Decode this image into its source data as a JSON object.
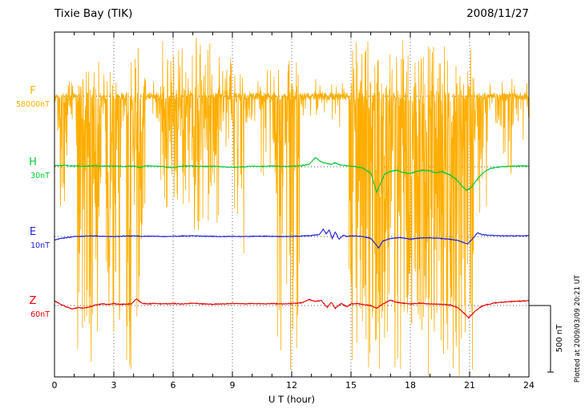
{
  "chart_data": {
    "type": "line",
    "title": "Tixie Bay (TIK)",
    "date": "2008/11/27",
    "xlabel": "U T (hour)",
    "xlim": [
      0,
      24
    ],
    "xticks": [
      0,
      3,
      6,
      9,
      12,
      15,
      18,
      21,
      24
    ],
    "x_minor_tick_hours": 1,
    "grid": "dotted vertical lines every 3 hours; dotted horizontal baseline for each component",
    "scale_bar": {
      "label": "500 nT",
      "nT": 500
    },
    "footer_note": "Plotted at 2009/03/09 20:21 UT",
    "series": [
      {
        "name": "F",
        "baseline_label": "58000nT",
        "baseline_nT": 58000,
        "color": "#FFAE00",
        "style": "noisy",
        "noise_segments": [
          [
            0.0,
            0.15,
            60,
            120,
            0.3
          ],
          [
            0.15,
            0.7,
            150,
            1100,
            0.55
          ],
          [
            0.7,
            1.1,
            120,
            300,
            0.35
          ],
          [
            1.1,
            2.3,
            360,
            2050,
            0.8
          ],
          [
            2.3,
            2.6,
            200,
            800,
            0.5
          ],
          [
            2.6,
            3.3,
            380,
            2100,
            0.8
          ],
          [
            3.3,
            3.6,
            200,
            700,
            0.45
          ],
          [
            3.6,
            4.6,
            420,
            2100,
            0.85
          ],
          [
            4.6,
            5.3,
            140,
            260,
            0.35
          ],
          [
            5.3,
            6.6,
            460,
            850,
            0.8
          ],
          [
            6.6,
            8.3,
            440,
            1050,
            0.8
          ],
          [
            8.3,
            9.0,
            300,
            420,
            0.55
          ],
          [
            9.0,
            9.6,
            260,
            1250,
            0.6
          ],
          [
            9.6,
            10.4,
            120,
            220,
            0.3
          ],
          [
            10.4,
            11.2,
            260,
            700,
            0.55
          ],
          [
            11.2,
            12.4,
            400,
            2050,
            0.75
          ],
          [
            12.4,
            12.9,
            100,
            180,
            0.2
          ],
          [
            12.9,
            13.4,
            200,
            500,
            0.3
          ],
          [
            13.4,
            14.9,
            120,
            300,
            0.12
          ],
          [
            14.9,
            16.2,
            430,
            2100,
            0.85
          ],
          [
            16.2,
            17.4,
            450,
            2150,
            0.92
          ],
          [
            17.4,
            19.2,
            460,
            2150,
            0.93
          ],
          [
            19.2,
            21.3,
            450,
            2150,
            0.9
          ],
          [
            21.3,
            21.9,
            200,
            900,
            0.5
          ],
          [
            21.9,
            22.6,
            120,
            260,
            0.3
          ],
          [
            22.6,
            23.3,
            180,
            620,
            0.45
          ],
          [
            23.3,
            24.0,
            100,
            420,
            0.25
          ]
        ]
      },
      {
        "name": "H",
        "baseline_label": "30nT",
        "baseline_nT": 30,
        "color": "#00C832",
        "noise_nT": 3,
        "points": [
          [
            0,
            8
          ],
          [
            0.5,
            10
          ],
          [
            1,
            6
          ],
          [
            1.5,
            4
          ],
          [
            2,
            8
          ],
          [
            2.5,
            4
          ],
          [
            3,
            6
          ],
          [
            3.5,
            2
          ],
          [
            4,
            6
          ],
          [
            4.3,
            -6
          ],
          [
            4.6,
            8
          ],
          [
            5,
            4
          ],
          [
            5.5,
            2
          ],
          [
            6,
            -8
          ],
          [
            6.3,
            4
          ],
          [
            7,
            6
          ],
          [
            7.5,
            2
          ],
          [
            8,
            4
          ],
          [
            8.5,
            0
          ],
          [
            9,
            -4
          ],
          [
            9.5,
            0
          ],
          [
            10,
            4
          ],
          [
            10.5,
            2
          ],
          [
            11,
            6
          ],
          [
            11.5,
            2
          ],
          [
            12,
            4
          ],
          [
            12.5,
            8
          ],
          [
            12.9,
            20
          ],
          [
            13.2,
            70
          ],
          [
            13.4,
            45
          ],
          [
            13.6,
            30
          ],
          [
            13.8,
            25
          ],
          [
            14,
            18
          ],
          [
            14.2,
            30
          ],
          [
            14.5,
            12
          ],
          [
            14.8,
            8
          ],
          [
            15,
            4
          ],
          [
            15.3,
            0
          ],
          [
            15.6,
            -10
          ],
          [
            16,
            -45
          ],
          [
            16.3,
            -190
          ],
          [
            16.5,
            -120
          ],
          [
            16.7,
            -55
          ],
          [
            17,
            -35
          ],
          [
            17.3,
            -25
          ],
          [
            17.6,
            -40
          ],
          [
            18,
            -50
          ],
          [
            18.3,
            -35
          ],
          [
            18.6,
            -25
          ],
          [
            19,
            -30
          ],
          [
            19.3,
            -45
          ],
          [
            19.6,
            -35
          ],
          [
            20,
            -60
          ],
          [
            20.3,
            -90
          ],
          [
            20.6,
            -140
          ],
          [
            20.85,
            -175
          ],
          [
            21.1,
            -150
          ],
          [
            21.4,
            -90
          ],
          [
            21.7,
            -40
          ],
          [
            22,
            -15
          ],
          [
            22.3,
            -5
          ],
          [
            22.6,
            0
          ],
          [
            23,
            4
          ],
          [
            23.5,
            6
          ],
          [
            24,
            6
          ]
        ]
      },
      {
        "name": "E",
        "baseline_label": "10nT",
        "baseline_nT": 10,
        "color": "#1E1EDC",
        "noise_nT": 2.5,
        "points": [
          [
            0,
            -25
          ],
          [
            0.3,
            -15
          ],
          [
            0.7,
            -6
          ],
          [
            1,
            0
          ],
          [
            1.5,
            3
          ],
          [
            2,
            5
          ],
          [
            2.5,
            2
          ],
          [
            3,
            0
          ],
          [
            3.5,
            3
          ],
          [
            4,
            5
          ],
          [
            4.5,
            2
          ],
          [
            5,
            3
          ],
          [
            5.5,
            0
          ],
          [
            6,
            2
          ],
          [
            6.5,
            4
          ],
          [
            7,
            6
          ],
          [
            7.5,
            3
          ],
          [
            8,
            2
          ],
          [
            8.5,
            0
          ],
          [
            9,
            2
          ],
          [
            9.5,
            0
          ],
          [
            10,
            2
          ],
          [
            10.5,
            3
          ],
          [
            11,
            2
          ],
          [
            11.5,
            0
          ],
          [
            12,
            2
          ],
          [
            12.5,
            4
          ],
          [
            13,
            8
          ],
          [
            13.4,
            15
          ],
          [
            13.6,
            55
          ],
          [
            13.75,
            20
          ],
          [
            13.9,
            50
          ],
          [
            14.05,
            -15
          ],
          [
            14.2,
            35
          ],
          [
            14.4,
            -20
          ],
          [
            14.6,
            10
          ],
          [
            14.8,
            0
          ],
          [
            15,
            5
          ],
          [
            15.5,
            2
          ],
          [
            16,
            -12
          ],
          [
            16.4,
            -85
          ],
          [
            16.6,
            -35
          ],
          [
            16.9,
            -18
          ],
          [
            17.2,
            -10
          ],
          [
            17.5,
            -8
          ],
          [
            18,
            -20
          ],
          [
            18.4,
            -12
          ],
          [
            18.8,
            -8
          ],
          [
            19.2,
            -12
          ],
          [
            19.6,
            -15
          ],
          [
            20,
            -20
          ],
          [
            20.4,
            -28
          ],
          [
            20.9,
            -55
          ],
          [
            21.1,
            -25
          ],
          [
            21.4,
            28
          ],
          [
            21.6,
            15
          ],
          [
            22,
            10
          ],
          [
            22.5,
            6
          ],
          [
            23,
            5
          ],
          [
            23.5,
            5
          ],
          [
            24,
            6
          ]
        ]
      },
      {
        "name": "Z",
        "baseline_label": "60nT",
        "baseline_nT": 60,
        "color": "#E60000",
        "noise_nT": 3,
        "points": [
          [
            0,
            36
          ],
          [
            0.3,
            10
          ],
          [
            0.6,
            -10
          ],
          [
            0.9,
            -25
          ],
          [
            1.2,
            -15
          ],
          [
            1.5,
            -20
          ],
          [
            1.8,
            -10
          ],
          [
            2.1,
            5
          ],
          [
            2.4,
            12
          ],
          [
            2.7,
            8
          ],
          [
            3,
            15
          ],
          [
            3.3,
            8
          ],
          [
            3.6,
            10
          ],
          [
            3.9,
            12
          ],
          [
            4.15,
            50
          ],
          [
            4.4,
            18
          ],
          [
            4.7,
            12
          ],
          [
            5,
            15
          ],
          [
            5.5,
            12
          ],
          [
            6,
            15
          ],
          [
            6.5,
            12
          ],
          [
            7,
            18
          ],
          [
            7.5,
            12
          ],
          [
            8,
            10
          ],
          [
            8.5,
            12
          ],
          [
            9,
            15
          ],
          [
            9.5,
            12
          ],
          [
            10,
            15
          ],
          [
            10.5,
            12
          ],
          [
            11,
            15
          ],
          [
            11.5,
            12
          ],
          [
            12,
            15
          ],
          [
            12.5,
            20
          ],
          [
            12.9,
            45
          ],
          [
            13.2,
            30
          ],
          [
            13.5,
            38
          ],
          [
            13.8,
            -15
          ],
          [
            14,
            25
          ],
          [
            14.2,
            -20
          ],
          [
            14.5,
            15
          ],
          [
            14.8,
            -10
          ],
          [
            15,
            12
          ],
          [
            15.3,
            15
          ],
          [
            15.6,
            8
          ],
          [
            16,
            0
          ],
          [
            16.3,
            -20
          ],
          [
            16.6,
            10
          ],
          [
            17,
            40
          ],
          [
            17.3,
            25
          ],
          [
            17.6,
            18
          ],
          [
            18,
            12
          ],
          [
            18.5,
            18
          ],
          [
            19,
            12
          ],
          [
            19.5,
            10
          ],
          [
            20,
            5
          ],
          [
            20.4,
            -15
          ],
          [
            20.7,
            -55
          ],
          [
            20.95,
            -90
          ],
          [
            21.2,
            -55
          ],
          [
            21.5,
            -15
          ],
          [
            21.8,
            5
          ],
          [
            22.2,
            18
          ],
          [
            22.6,
            24
          ],
          [
            23,
            28
          ],
          [
            23.5,
            32
          ],
          [
            24,
            36
          ]
        ]
      }
    ]
  }
}
